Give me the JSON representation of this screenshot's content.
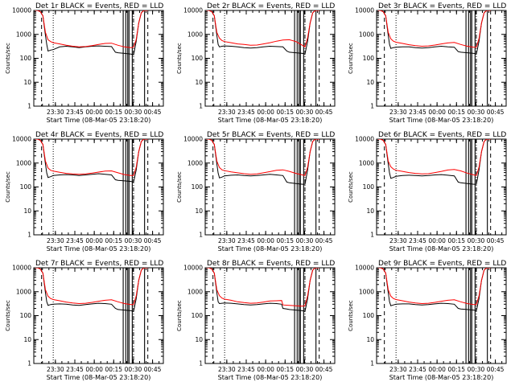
{
  "colors": {
    "background": "#ffffff",
    "events": "#000000",
    "lld": "#ff0000"
  },
  "chart_data": {
    "type": "line",
    "yscale": "log",
    "grid": false,
    "ylim": [
      1,
      10000
    ],
    "yticks": [
      "1",
      "10",
      "100",
      "1000",
      "10000"
    ],
    "xticks": [
      "23:30",
      "23:45",
      "00:00",
      "00:15",
      "00:30",
      "00:45"
    ],
    "ylabel": "Counts/sec",
    "xlabel": "Start Time (08-Mar-05 23:18:20)",
    "xrange_minutes": [
      -5,
      95
    ],
    "xtick_minutes": [
      11.67,
      26.67,
      41.67,
      56.67,
      71.67,
      86.67
    ],
    "dashed_lines_minutes": [
      1,
      83
    ],
    "dotted_lines_minutes": [
      10
    ],
    "dashdot_lines_minutes": [
      72
    ],
    "solid_vertical_lines_minutes": [
      64,
      66,
      67.5,
      68.5,
      71,
      80.5
    ],
    "panels": [
      {
        "title": "Det 1r  BLACK = Events,  RED = LLD",
        "events": {
          "x": [
            -4,
            -2,
            0,
            2,
            4,
            5,
            6,
            8,
            10,
            15,
            20,
            25,
            30,
            35,
            40,
            45,
            50,
            55,
            58,
            60,
            65,
            70,
            72,
            74,
            76,
            78,
            80,
            82,
            83
          ],
          "y": [
            10000,
            10000,
            9000,
            6000,
            900,
            380,
            200,
            220,
            230,
            300,
            320,
            300,
            280,
            300,
            320,
            330,
            320,
            310,
            180,
            170,
            160,
            150,
            140,
            500,
            3000,
            8000,
            10000,
            10000,
            10000
          ]
        },
        "lld": {
          "x": [
            -4,
            -2,
            0,
            2,
            4,
            6,
            8,
            10,
            15,
            20,
            25,
            30,
            35,
            40,
            45,
            50,
            55,
            60,
            65,
            70,
            72,
            74,
            76,
            78,
            80,
            82,
            83
          ],
          "y": [
            10000,
            10000,
            9000,
            6000,
            1200,
            600,
            500,
            450,
            400,
            350,
            320,
            300,
            310,
            340,
            380,
            420,
            430,
            350,
            300,
            280,
            290,
            600,
            3000,
            8000,
            10000,
            10000,
            10000
          ]
        }
      },
      {
        "title": "Det 2r  BLACK = Events,  RED = LLD",
        "events": {
          "x": [
            -4,
            -2,
            0,
            2,
            4,
            5,
            6,
            8,
            10,
            15,
            20,
            25,
            30,
            35,
            40,
            45,
            50,
            55,
            58,
            60,
            65,
            70,
            72,
            74,
            76,
            78,
            80,
            82,
            83
          ],
          "y": [
            10000,
            10000,
            9000,
            6000,
            900,
            380,
            300,
            320,
            330,
            320,
            300,
            280,
            270,
            280,
            300,
            320,
            310,
            300,
            200,
            180,
            170,
            160,
            150,
            500,
            3000,
            8000,
            10000,
            10000,
            10000
          ]
        },
        "lld": {
          "x": [
            -4,
            -2,
            0,
            2,
            4,
            6,
            8,
            10,
            15,
            20,
            25,
            30,
            35,
            40,
            45,
            50,
            55,
            60,
            65,
            70,
            72,
            74,
            76,
            78,
            80,
            82,
            83
          ],
          "y": [
            10000,
            10000,
            9000,
            6000,
            1200,
            700,
            550,
            500,
            450,
            400,
            380,
            350,
            360,
            400,
            450,
            520,
            580,
            600,
            500,
            350,
            300,
            700,
            3000,
            8000,
            10000,
            10000,
            10000
          ]
        }
      },
      {
        "title": "Det 3r  BLACK = Events,  RED = LLD",
        "events": {
          "x": [
            -4,
            -2,
            0,
            2,
            4,
            5,
            6,
            8,
            10,
            15,
            20,
            25,
            30,
            35,
            40,
            45,
            50,
            55,
            58,
            60,
            65,
            70,
            72,
            74,
            76,
            78,
            80,
            82,
            83
          ],
          "y": [
            10000,
            10000,
            9000,
            6000,
            900,
            380,
            260,
            280,
            290,
            300,
            300,
            280,
            270,
            280,
            300,
            320,
            300,
            290,
            190,
            180,
            170,
            160,
            150,
            500,
            3000,
            8000,
            10000,
            10000,
            10000
          ]
        },
        "lld": {
          "x": [
            -4,
            -2,
            0,
            2,
            4,
            6,
            8,
            10,
            15,
            20,
            25,
            30,
            35,
            40,
            45,
            50,
            55,
            60,
            65,
            70,
            72,
            74,
            76,
            78,
            80,
            82,
            83
          ],
          "y": [
            10000,
            10000,
            9000,
            6000,
            1200,
            650,
            520,
            470,
            420,
            370,
            340,
            320,
            330,
            360,
            400,
            440,
            460,
            380,
            320,
            290,
            290,
            650,
            3000,
            8000,
            10000,
            10000,
            10000
          ]
        }
      },
      {
        "title": "Det 4r  BLACK = Events,  RED = LLD",
        "events": {
          "x": [
            -4,
            -2,
            0,
            2,
            4,
            5,
            6,
            8,
            10,
            15,
            20,
            25,
            30,
            35,
            40,
            45,
            50,
            55,
            58,
            60,
            65,
            70,
            72,
            74,
            76,
            78,
            80,
            82,
            83
          ],
          "y": [
            10000,
            10000,
            9000,
            6000,
            900,
            380,
            250,
            270,
            300,
            320,
            330,
            320,
            300,
            320,
            340,
            360,
            340,
            320,
            200,
            190,
            180,
            170,
            160,
            500,
            3000,
            8000,
            10000,
            10000,
            10000
          ]
        },
        "lld": {
          "x": [
            -4,
            -2,
            0,
            2,
            4,
            6,
            8,
            10,
            15,
            20,
            25,
            30,
            35,
            40,
            45,
            50,
            55,
            60,
            65,
            70,
            72,
            74,
            76,
            78,
            80,
            82,
            83
          ],
          "y": [
            10000,
            10000,
            9000,
            6000,
            1200,
            620,
            500,
            460,
            410,
            370,
            350,
            340,
            350,
            380,
            420,
            460,
            470,
            390,
            330,
            300,
            300,
            650,
            3000,
            8000,
            10000,
            10000,
            10000
          ]
        }
      },
      {
        "title": "Det 5r  BLACK = Events,  RED = LLD",
        "events": {
          "x": [
            -4,
            -2,
            0,
            2,
            4,
            5,
            6,
            8,
            10,
            15,
            20,
            25,
            30,
            35,
            40,
            45,
            50,
            55,
            58,
            60,
            65,
            70,
            72,
            74,
            76,
            78,
            80,
            82,
            83
          ],
          "y": [
            10000,
            10000,
            9000,
            6000,
            900,
            380,
            240,
            260,
            290,
            310,
            320,
            300,
            290,
            300,
            320,
            340,
            320,
            300,
            160,
            150,
            140,
            130,
            130,
            500,
            3000,
            8000,
            10000,
            10000,
            10000
          ]
        },
        "lld": {
          "x": [
            -4,
            -2,
            0,
            2,
            4,
            6,
            8,
            10,
            15,
            20,
            25,
            30,
            35,
            40,
            45,
            50,
            55,
            60,
            65,
            70,
            72,
            74,
            76,
            78,
            80,
            82,
            83
          ],
          "y": [
            10000,
            10000,
            9000,
            6000,
            1200,
            650,
            520,
            480,
            430,
            390,
            360,
            340,
            350,
            390,
            440,
            500,
            520,
            450,
            370,
            320,
            300,
            650,
            3000,
            8000,
            10000,
            10000,
            10000
          ]
        }
      },
      {
        "title": "Det 6r  BLACK = Events,  RED = LLD",
        "events": {
          "x": [
            -4,
            -2,
            0,
            2,
            4,
            5,
            6,
            8,
            10,
            15,
            20,
            25,
            30,
            35,
            40,
            45,
            50,
            55,
            58,
            60,
            65,
            70,
            72,
            74,
            76,
            78,
            80,
            82,
            83
          ],
          "y": [
            10000,
            10000,
            9000,
            6000,
            900,
            380,
            230,
            250,
            280,
            300,
            310,
            300,
            290,
            300,
            320,
            330,
            310,
            290,
            160,
            150,
            140,
            130,
            130,
            500,
            3000,
            8000,
            10000,
            10000,
            10000
          ]
        },
        "lld": {
          "x": [
            -4,
            -2,
            0,
            2,
            4,
            6,
            8,
            10,
            15,
            20,
            25,
            30,
            35,
            40,
            45,
            50,
            55,
            60,
            65,
            70,
            72,
            74,
            76,
            78,
            80,
            82,
            83
          ],
          "y": [
            10000,
            10000,
            9000,
            6000,
            1200,
            700,
            560,
            500,
            450,
            400,
            370,
            350,
            360,
            400,
            450,
            510,
            540,
            470,
            380,
            320,
            300,
            650,
            3000,
            8000,
            10000,
            10000,
            10000
          ]
        }
      },
      {
        "title": "Det 7r  BLACK = Events,  RED = LLD",
        "events": {
          "x": [
            -4,
            -2,
            0,
            2,
            4,
            5,
            6,
            8,
            10,
            15,
            20,
            25,
            30,
            35,
            40,
            45,
            50,
            55,
            58,
            60,
            65,
            70,
            72,
            74,
            76,
            78,
            80,
            82,
            83
          ],
          "y": [
            10000,
            10000,
            9000,
            6000,
            900,
            380,
            270,
            290,
            300,
            310,
            300,
            280,
            270,
            290,
            310,
            330,
            320,
            300,
            200,
            180,
            170,
            160,
            150,
            500,
            3000,
            8000,
            10000,
            10000,
            10000
          ]
        },
        "lld": {
          "x": [
            -4,
            -2,
            0,
            2,
            4,
            6,
            8,
            10,
            15,
            20,
            25,
            30,
            35,
            40,
            45,
            50,
            55,
            60,
            65,
            70,
            72,
            74,
            76,
            78,
            80,
            82,
            83
          ],
          "y": [
            10000,
            10000,
            9000,
            6000,
            1200,
            650,
            520,
            470,
            420,
            370,
            340,
            320,
            330,
            360,
            400,
            440,
            460,
            380,
            320,
            290,
            290,
            650,
            3000,
            8000,
            10000,
            10000,
            10000
          ]
        }
      },
      {
        "title": "Det 8r  BLACK = Events,  RED = LLD",
        "events": {
          "x": [
            -4,
            -2,
            0,
            2,
            4,
            5,
            6,
            8,
            10,
            15,
            20,
            25,
            30,
            35,
            40,
            45,
            50,
            54,
            55,
            58,
            60,
            65,
            70,
            72,
            74,
            76,
            78,
            80,
            82,
            83
          ],
          "y": [
            10000,
            10000,
            9000,
            6000,
            900,
            380,
            320,
            330,
            340,
            330,
            310,
            290,
            280,
            290,
            310,
            330,
            320,
            300,
            200,
            190,
            180,
            170,
            160,
            150,
            500,
            3000,
            8000,
            10000,
            10000,
            10000
          ]
        },
        "lld": {
          "x": [
            -4,
            -2,
            0,
            2,
            4,
            6,
            8,
            10,
            15,
            20,
            25,
            30,
            35,
            40,
            45,
            50,
            54,
            55,
            60,
            65,
            70,
            72,
            74,
            76,
            78,
            80,
            82,
            83
          ],
          "y": [
            10000,
            10000,
            9000,
            6000,
            1200,
            680,
            540,
            490,
            440,
            380,
            350,
            330,
            340,
            370,
            410,
            420,
            430,
            280,
            270,
            260,
            250,
            260,
            650,
            3000,
            8000,
            10000,
            10000,
            10000
          ]
        }
      },
      {
        "title": "Det 9r  BLACK = Events,  RED = LLD",
        "events": {
          "x": [
            -4,
            -2,
            0,
            2,
            4,
            5,
            6,
            8,
            10,
            15,
            20,
            25,
            30,
            35,
            40,
            45,
            50,
            55,
            58,
            60,
            65,
            70,
            72,
            74,
            76,
            78,
            80,
            82,
            83
          ],
          "y": [
            10000,
            10000,
            9000,
            6000,
            900,
            380,
            260,
            280,
            300,
            310,
            310,
            290,
            280,
            290,
            310,
            330,
            320,
            300,
            200,
            190,
            180,
            170,
            160,
            500,
            3000,
            8000,
            10000,
            10000,
            10000
          ]
        },
        "lld": {
          "x": [
            -4,
            -2,
            0,
            2,
            4,
            6,
            8,
            10,
            15,
            20,
            25,
            30,
            35,
            40,
            45,
            50,
            55,
            60,
            65,
            70,
            72,
            74,
            76,
            78,
            80,
            82,
            83
          ],
          "y": [
            10000,
            10000,
            9000,
            6000,
            1200,
            650,
            520,
            470,
            420,
            370,
            340,
            320,
            330,
            360,
            400,
            440,
            460,
            380,
            320,
            290,
            290,
            650,
            3000,
            8000,
            10000,
            10000,
            10000
          ]
        }
      }
    ]
  }
}
